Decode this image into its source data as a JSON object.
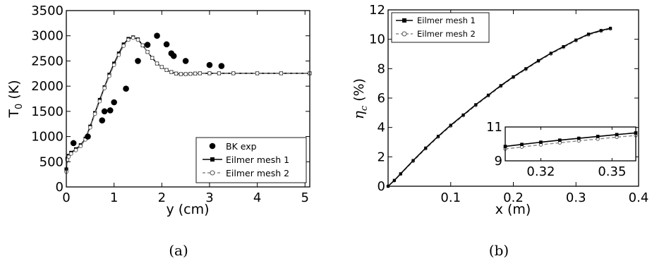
{
  "chart_data": [
    {
      "panel": "(a)",
      "type": "line",
      "xlabel": "y (cm)",
      "ylabel_main": "T",
      "ylabel_sub": "0",
      "ylabel_unit": " (K)",
      "xlim": [
        0,
        5.1
      ],
      "ylim": [
        0,
        3500
      ],
      "xticks": [
        0,
        1,
        2,
        3,
        4,
        5
      ],
      "yticks": [
        0,
        500,
        1000,
        1500,
        2000,
        2500,
        3000,
        3500
      ],
      "legend": {
        "position": "bottom-right",
        "entries": [
          "BK exp",
          "Eilmer mesh 1",
          "Eilmer mesh 2"
        ]
      },
      "series": [
        {
          "name": "BK exp",
          "style": "markers",
          "color": "#000000",
          "x": [
            0.15,
            0.45,
            0.75,
            0.8,
            0.92,
            1.0,
            1.25,
            1.5,
            1.7,
            1.9,
            2.1,
            2.2,
            2.25,
            2.5,
            3.0,
            3.25
          ],
          "y": [
            870,
            1000,
            1320,
            1500,
            1520,
            1680,
            1950,
            2500,
            2820,
            3000,
            2830,
            2650,
            2600,
            2500,
            2420,
            2400
          ]
        },
        {
          "name": "Eilmer mesh 1",
          "style": "line-square",
          "color": "#000000",
          "x": [
            0,
            0.02,
            0.05,
            0.1,
            0.2,
            0.3,
            0.4,
            0.5,
            0.6,
            0.7,
            0.8,
            0.9,
            1.0,
            1.1,
            1.2,
            1.3,
            1.4,
            1.5,
            1.6,
            1.7,
            1.8,
            1.9,
            2.0,
            2.1,
            2.2,
            2.3,
            2.4,
            2.5,
            2.6,
            2.7,
            2.8,
            3.0,
            3.2,
            3.5,
            4.0,
            4.5,
            5.1
          ],
          "y": [
            350,
            560,
            620,
            680,
            750,
            830,
            960,
            1200,
            1470,
            1730,
            1980,
            2230,
            2450,
            2650,
            2830,
            2940,
            2970,
            2930,
            2810,
            2680,
            2560,
            2450,
            2380,
            2320,
            2280,
            2250,
            2240,
            2240,
            2245,
            2250,
            2255,
            2255,
            2255,
            2255,
            2255,
            2255,
            2255
          ]
        },
        {
          "name": "Eilmer mesh 2",
          "style": "dashed-circle",
          "color": "#888888",
          "x": [
            0,
            0.02,
            0.05,
            0.1,
            0.2,
            0.3,
            0.4,
            0.5,
            0.6,
            0.7,
            0.8,
            0.9,
            1.0,
            1.1,
            1.2,
            1.3,
            1.4,
            1.5,
            1.6,
            1.7,
            1.8,
            1.9,
            2.0,
            2.1,
            2.2,
            2.3,
            2.4,
            2.5,
            2.6,
            2.7,
            2.8,
            3.0,
            3.2,
            3.5,
            4.0,
            4.5,
            5.1
          ],
          "y": [
            300,
            540,
            600,
            660,
            730,
            810,
            940,
            1180,
            1450,
            1700,
            1960,
            2200,
            2420,
            2620,
            2800,
            2920,
            2960,
            2920,
            2810,
            2680,
            2560,
            2450,
            2380,
            2320,
            2280,
            2250,
            2240,
            2240,
            2245,
            2250,
            2255,
            2255,
            2255,
            2255,
            2255,
            2255,
            2255
          ]
        }
      ]
    },
    {
      "panel": "(b)",
      "type": "line",
      "xlabel": "x (m)",
      "ylabel_symbol": "η",
      "ylabel_sub": "c",
      "ylabel_unit": " (%)",
      "xlim": [
        0,
        0.4
      ],
      "ylim": [
        0,
        12
      ],
      "xticks": [
        0.1,
        0.2,
        0.3,
        0.4
      ],
      "yticks": [
        0,
        2,
        4,
        6,
        8,
        10,
        12
      ],
      "legend": {
        "position": "top-left",
        "entries": [
          "Eilmer mesh 1",
          "Eilmer mesh 2"
        ]
      },
      "series": [
        {
          "name": "Eilmer mesh 1",
          "style": "line-square",
          "color": "#000000",
          "x": [
            0.0,
            0.01,
            0.02,
            0.04,
            0.06,
            0.08,
            0.1,
            0.12,
            0.14,
            0.16,
            0.18,
            0.2,
            0.22,
            0.24,
            0.26,
            0.28,
            0.3,
            0.32,
            0.34,
            0.355
          ],
          "y": [
            0.0,
            0.4,
            0.85,
            1.75,
            2.6,
            3.4,
            4.15,
            4.85,
            5.55,
            6.2,
            6.85,
            7.45,
            8.0,
            8.55,
            9.05,
            9.5,
            9.95,
            10.35,
            10.6,
            10.75
          ]
        },
        {
          "name": "Eilmer mesh 2",
          "style": "dashed-circle",
          "color": "#888888",
          "x": [
            0.0,
            0.01,
            0.02,
            0.04,
            0.06,
            0.08,
            0.1,
            0.12,
            0.14,
            0.16,
            0.18,
            0.2,
            0.22,
            0.24,
            0.26,
            0.28,
            0.3,
            0.32,
            0.34,
            0.355
          ],
          "y": [
            0.0,
            0.38,
            0.82,
            1.7,
            2.55,
            3.35,
            4.1,
            4.8,
            5.5,
            6.15,
            6.8,
            7.4,
            7.95,
            8.5,
            9.0,
            9.45,
            9.9,
            10.3,
            10.55,
            10.7
          ]
        }
      ],
      "inset": {
        "xlim": [
          0.305,
          0.36
        ],
        "ylim": [
          9,
          11
        ],
        "xticks": [
          0.32,
          0.35
        ],
        "yticks": [
          9,
          11
        ],
        "series": [
          {
            "name": "Eilmer mesh 1",
            "x": [
              0.305,
              0.312,
              0.32,
              0.328,
              0.336,
              0.344,
              0.352,
              0.36
            ],
            "y": [
              9.85,
              9.97,
              10.1,
              10.22,
              10.33,
              10.44,
              10.55,
              10.65
            ]
          },
          {
            "name": "Eilmer mesh 2",
            "x": [
              0.305,
              0.312,
              0.32,
              0.328,
              0.336,
              0.344,
              0.352,
              0.36
            ],
            "y": [
              9.7,
              9.82,
              9.95,
              10.07,
              10.18,
              10.29,
              10.4,
              10.5
            ]
          }
        ]
      }
    }
  ],
  "captions": {
    "a": "(a)",
    "b": "(b)"
  }
}
